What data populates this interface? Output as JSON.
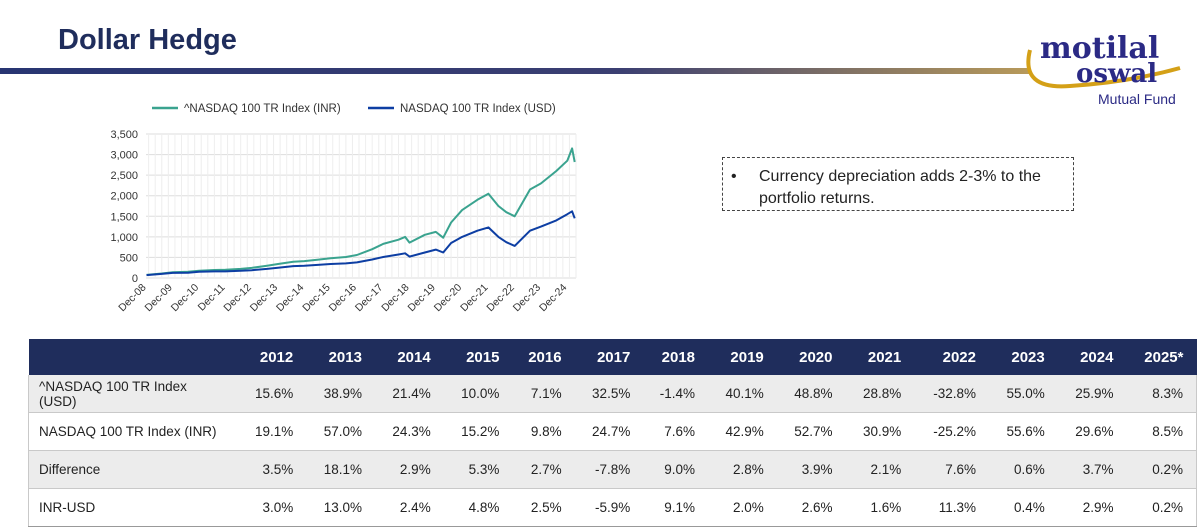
{
  "page": {
    "title": "Dollar Hedge"
  },
  "logo": {
    "line1": "motilal",
    "line2": "oswal",
    "line3": "Mutual Fund"
  },
  "callout": {
    "bullet": "•",
    "text": "Currency depreciation adds 2-3% to the portfolio returns."
  },
  "colors": {
    "inr_series": "#3aa38f",
    "usd_series": "#0d3ea3",
    "header": "#1f2d5c",
    "accent_gold": "#d4a017"
  },
  "chart_data": {
    "type": "line",
    "title": "",
    "xlabel": "",
    "ylabel": "",
    "ylim": [
      0,
      3500
    ],
    "yticks": [
      0,
      500,
      1000,
      1500,
      2000,
      2500,
      3000,
      3500
    ],
    "ytick_labels": [
      "0",
      "500",
      "1,000",
      "1,500",
      "2,000",
      "2,500",
      "3,000",
      "3,500"
    ],
    "x_labels": [
      "Dec-08",
      "Dec-09",
      "Dec-10",
      "Dec-11",
      "Dec-12",
      "Dec-13",
      "Dec-14",
      "Dec-15",
      "Dec-16",
      "Dec-17",
      "Dec-18",
      "Dec-19",
      "Dec-20",
      "Dec-21",
      "Dec-22",
      "Dec-23",
      "Dec-24"
    ],
    "x_range": [
      2008.9,
      2025.25
    ],
    "grid": true,
    "legend_position": "top",
    "series": [
      {
        "name": "^NASDAQ 100 TR Index (INR)",
        "x": [
          2008.92,
          2009.5,
          2009.92,
          2010.5,
          2010.92,
          2011.5,
          2011.92,
          2012.5,
          2012.92,
          2013.5,
          2013.92,
          2014.5,
          2014.92,
          2015.5,
          2015.92,
          2016.5,
          2016.92,
          2017.5,
          2017.92,
          2018.5,
          2018.75,
          2018.92,
          2019.5,
          2019.92,
          2020.2,
          2020.5,
          2020.92,
          2021.5,
          2021.92,
          2022.3,
          2022.6,
          2022.92,
          2023.5,
          2023.92,
          2024.5,
          2024.92,
          2025.1,
          2025.2
        ],
        "values": [
          75,
          110,
          140,
          150,
          175,
          195,
          200,
          220,
          245,
          300,
          340,
          395,
          410,
          450,
          480,
          510,
          560,
          700,
          830,
          930,
          1000,
          860,
          1050,
          1120,
          980,
          1350,
          1650,
          1900,
          2050,
          1750,
          1600,
          1500,
          2150,
          2300,
          2600,
          2850,
          3150,
          2820
        ]
      },
      {
        "name": "NASDAQ 100 TR Index (USD)",
        "x": [
          2008.92,
          2009.5,
          2009.92,
          2010.5,
          2010.92,
          2011.5,
          2011.92,
          2012.5,
          2012.92,
          2013.5,
          2013.92,
          2014.5,
          2014.92,
          2015.5,
          2015.92,
          2016.5,
          2016.92,
          2017.5,
          2017.92,
          2018.5,
          2018.75,
          2018.92,
          2019.5,
          2019.92,
          2020.2,
          2020.5,
          2020.92,
          2021.5,
          2021.92,
          2022.3,
          2022.6,
          2022.92,
          2023.5,
          2023.92,
          2024.5,
          2024.92,
          2025.1,
          2025.2
        ],
        "values": [
          70,
          100,
          125,
          130,
          150,
          160,
          160,
          175,
          190,
          220,
          250,
          290,
          300,
          320,
          340,
          355,
          380,
          450,
          510,
          570,
          600,
          520,
          620,
          690,
          620,
          850,
          1000,
          1150,
          1230,
          1000,
          870,
          780,
          1150,
          1250,
          1400,
          1550,
          1620,
          1450
        ]
      }
    ]
  },
  "table": {
    "columns": [
      "2012",
      "2013",
      "2014",
      "2015",
      "2016",
      "2017",
      "2018",
      "2019",
      "2020",
      "2021",
      "2022",
      "2023",
      "2024",
      "2025*"
    ],
    "rows": [
      {
        "label": "^NASDAQ 100 TR Index (USD)",
        "values": [
          "15.6%",
          "38.9%",
          "21.4%",
          "10.0%",
          "7.1%",
          "32.5%",
          "-1.4%",
          "40.1%",
          "48.8%",
          "28.8%",
          "-32.8%",
          "55.0%",
          "25.9%",
          "8.3%"
        ]
      },
      {
        "label": "NASDAQ 100 TR Index (INR)",
        "values": [
          "19.1%",
          "57.0%",
          "24.3%",
          "15.2%",
          "9.8%",
          "24.7%",
          "7.6%",
          "42.9%",
          "52.7%",
          "30.9%",
          "-25.2%",
          "55.6%",
          "29.6%",
          "8.5%"
        ]
      },
      {
        "label": "Difference",
        "values": [
          "3.5%",
          "18.1%",
          "2.9%",
          "5.3%",
          "2.7%",
          "-7.8%",
          "9.0%",
          "2.8%",
          "3.9%",
          "2.1%",
          "7.6%",
          "0.6%",
          "3.7%",
          "0.2%"
        ]
      },
      {
        "label": "INR-USD",
        "values": [
          "3.0%",
          "13.0%",
          "2.4%",
          "4.8%",
          "2.5%",
          "-5.9%",
          "9.1%",
          "2.0%",
          "2.6%",
          "1.6%",
          "11.3%",
          "0.4%",
          "2.9%",
          "0.2%"
        ]
      }
    ]
  }
}
